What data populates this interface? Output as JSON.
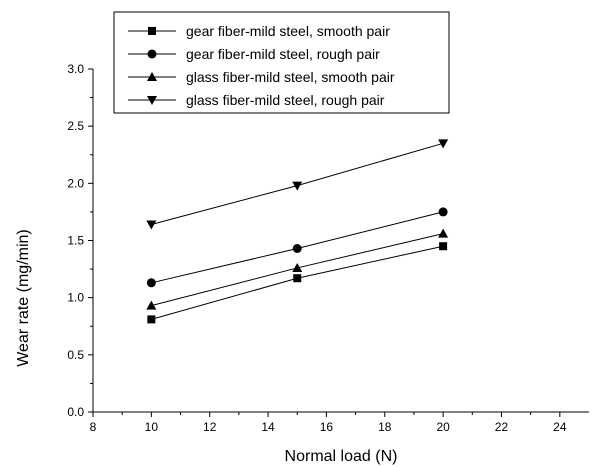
{
  "chart_data": {
    "type": "line",
    "xlabel": "Normal load (N)",
    "ylabel": "Wear rate (mg/min)",
    "xlim": [
      8,
      25
    ],
    "ylim": [
      0,
      3.0
    ],
    "x_ticks": [
      8,
      10,
      12,
      14,
      16,
      18,
      20,
      22,
      24
    ],
    "y_ticks": [
      0.0,
      0.5,
      1.0,
      1.5,
      2.0,
      2.5,
      3.0
    ],
    "x_tick_labels": [
      "8",
      "10",
      "12",
      "14",
      "16",
      "18",
      "20",
      "22",
      "24"
    ],
    "y_tick_labels": [
      "0.0",
      "0.5",
      "1.0",
      "1.5",
      "2.0",
      "2.5",
      "3.0"
    ],
    "legend_position": "top-left",
    "grid": false,
    "x": [
      10,
      15,
      20
    ],
    "series": [
      {
        "name": "gear fiber-mild steel, smooth pair",
        "marker": "square",
        "values": [
          0.81,
          1.17,
          1.45
        ]
      },
      {
        "name": "gear fiber-mild steel, rough pair",
        "marker": "circle",
        "values": [
          1.13,
          1.43,
          1.75
        ]
      },
      {
        "name": "glass fiber-mild steel, smooth pair",
        "marker": "triangle-up",
        "values": [
          0.93,
          1.26,
          1.56
        ]
      },
      {
        "name": "glass fiber-mild steel, rough pair",
        "marker": "triangle-down",
        "values": [
          1.64,
          1.98,
          2.35
        ]
      }
    ]
  }
}
